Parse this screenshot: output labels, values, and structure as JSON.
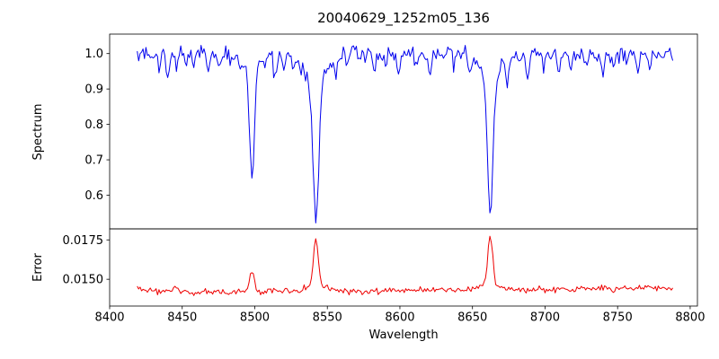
{
  "chart_data": {
    "type": "line",
    "title": "20040629_1252m05_136",
    "xlabel": "Wavelength",
    "x_range": [
      8400,
      8805
    ],
    "x_data_range": [
      8419,
      8788
    ],
    "x_step": 1,
    "x_ticks": [
      8400,
      8450,
      8500,
      8550,
      8600,
      8650,
      8700,
      8750,
      8800
    ],
    "x_tick_labels": [
      "8400",
      "8450",
      "8500",
      "8550",
      "8600",
      "8650",
      "8700",
      "8750",
      "8800"
    ],
    "grid": false,
    "legend": null,
    "seed": 20040629,
    "panels": [
      {
        "name": "spectrum",
        "ylabel": "Spectrum",
        "color": "#0000ee",
        "ylim": [
          0.505,
          1.055
        ],
        "y_ticks": [
          1.0,
          0.9,
          0.8,
          0.7,
          0.6
        ],
        "y_tick_labels": [
          "1.0",
          "0.9",
          "0.8",
          "0.7",
          "0.6"
        ],
        "baseline": 1.0,
        "noise_sigma": 0.011,
        "absorption_lines": [
          {
            "center": 8498.0,
            "depth": 0.3,
            "width": 1.6
          },
          {
            "center": 8498.0,
            "depth": 0.05,
            "width": 5.0
          },
          {
            "center": 8542.1,
            "depth": 0.4,
            "width": 2.0
          },
          {
            "center": 8542.1,
            "depth": 0.075,
            "width": 8.0
          },
          {
            "center": 8662.2,
            "depth": 0.38,
            "width": 1.8
          },
          {
            "center": 8662.2,
            "depth": 0.07,
            "width": 7.0
          },
          {
            "center": 8434,
            "depth": 0.035,
            "width": 0.9
          },
          {
            "center": 8440,
            "depth": 0.065,
            "width": 1.0
          },
          {
            "center": 8446,
            "depth": 0.045,
            "width": 0.9
          },
          {
            "center": 8452,
            "depth": 0.03,
            "width": 0.8
          },
          {
            "center": 8457,
            "depth": 0.025,
            "width": 0.8
          },
          {
            "center": 8468,
            "depth": 0.05,
            "width": 1.0
          },
          {
            "center": 8476,
            "depth": 0.03,
            "width": 0.9
          },
          {
            "center": 8484,
            "depth": 0.025,
            "width": 0.8
          },
          {
            "center": 8490,
            "depth": 0.035,
            "width": 0.9
          },
          {
            "center": 8508,
            "depth": 0.03,
            "width": 0.9
          },
          {
            "center": 8514,
            "depth": 0.07,
            "width": 1.1
          },
          {
            "center": 8520,
            "depth": 0.04,
            "width": 0.9
          },
          {
            "center": 8527,
            "depth": 0.03,
            "width": 0.9
          },
          {
            "center": 8535,
            "depth": 0.025,
            "width": 0.8
          },
          {
            "center": 8556,
            "depth": 0.04,
            "width": 1.0
          },
          {
            "center": 8564,
            "depth": 0.03,
            "width": 0.9
          },
          {
            "center": 8572,
            "depth": 0.025,
            "width": 0.8
          },
          {
            "center": 8582,
            "depth": 0.045,
            "width": 1.0
          },
          {
            "center": 8590,
            "depth": 0.03,
            "width": 0.9
          },
          {
            "center": 8599,
            "depth": 0.065,
            "width": 1.1
          },
          {
            "center": 8611,
            "depth": 0.04,
            "width": 1.0
          },
          {
            "center": 8621,
            "depth": 0.05,
            "width": 1.0
          },
          {
            "center": 8630,
            "depth": 0.025,
            "width": 0.8
          },
          {
            "center": 8637,
            "depth": 0.03,
            "width": 0.9
          },
          {
            "center": 8648,
            "depth": 0.04,
            "width": 0.9
          },
          {
            "center": 8674,
            "depth": 0.045,
            "width": 1.0
          },
          {
            "center": 8682,
            "depth": 0.03,
            "width": 0.9
          },
          {
            "center": 8688,
            "depth": 0.065,
            "width": 1.1
          },
          {
            "center": 8699,
            "depth": 0.035,
            "width": 0.9
          },
          {
            "center": 8710,
            "depth": 0.05,
            "width": 1.0
          },
          {
            "center": 8718,
            "depth": 0.03,
            "width": 0.9
          },
          {
            "center": 8729,
            "depth": 0.035,
            "width": 0.9
          },
          {
            "center": 8740,
            "depth": 0.055,
            "width": 1.0
          },
          {
            "center": 8747,
            "depth": 0.045,
            "width": 1.0
          },
          {
            "center": 8757,
            "depth": 0.03,
            "width": 0.9
          },
          {
            "center": 8764,
            "depth": 0.045,
            "width": 1.0
          },
          {
            "center": 8772,
            "depth": 0.035,
            "width": 0.9
          },
          {
            "center": 8780,
            "depth": 0.03,
            "width": 0.9
          }
        ]
      },
      {
        "name": "error",
        "ylabel": "Error",
        "color": "#ee0000",
        "ylim": [
          0.0133,
          0.0182
        ],
        "y_ticks": [
          0.0175,
          0.015
        ],
        "y_tick_labels": [
          "0.0175",
          "0.0150"
        ],
        "baseline": 0.01415,
        "noise_sigma": 9e-05,
        "trend": 8e-07,
        "edge_bump": {
          "height": 0.0003,
          "scale": 8
        },
        "peaks": [
          {
            "center": 8445,
            "height": 0.0004,
            "width": 2.0
          },
          {
            "center": 8498.0,
            "height": 0.0013,
            "width": 1.6
          },
          {
            "center": 8542.1,
            "height": 0.0028,
            "width": 1.7
          },
          {
            "center": 8542.1,
            "height": 0.0004,
            "width": 6.0
          },
          {
            "center": 8662.2,
            "height": 0.0031,
            "width": 1.6
          },
          {
            "center": 8662.2,
            "height": 0.0004,
            "width": 6.0
          }
        ]
      }
    ]
  }
}
